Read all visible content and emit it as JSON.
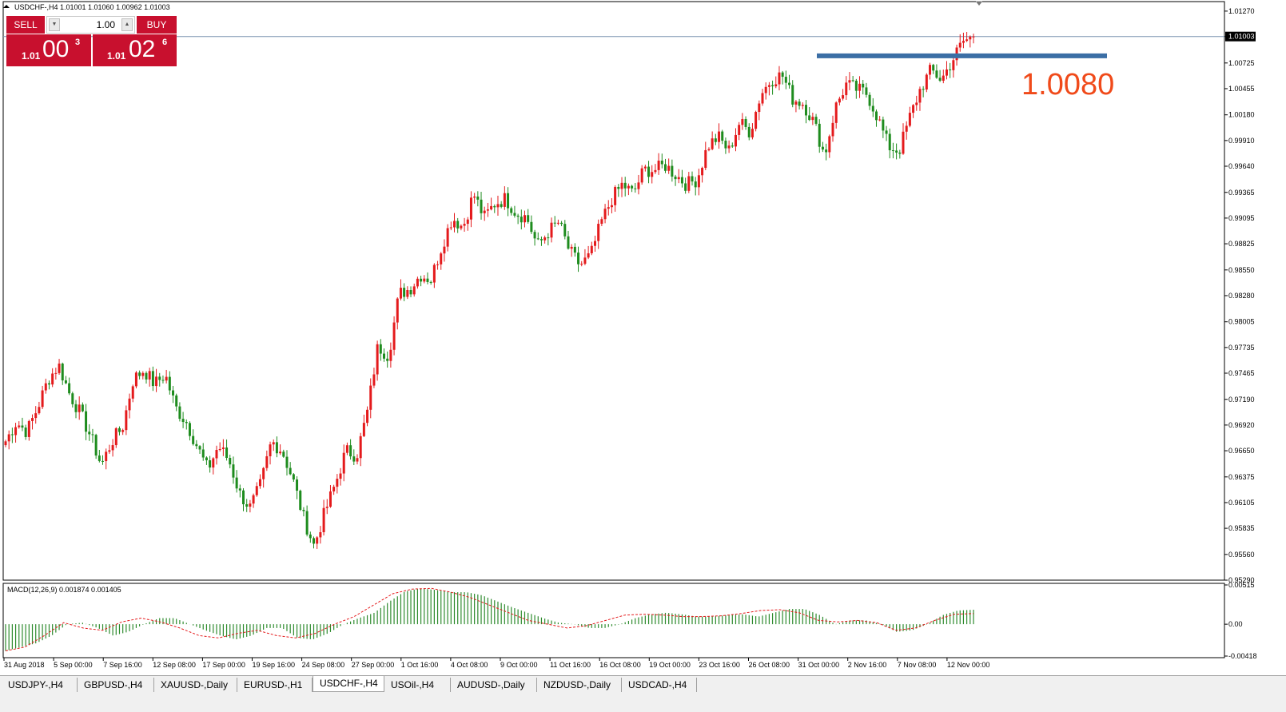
{
  "symbol_header": "USDCHF-,H4  1.01001 1.01060 1.00962 1.01003",
  "trade_panel": {
    "sell_label": "SELL",
    "buy_label": "BUY",
    "lot": "1.00",
    "sell_price": {
      "prefix": "1.01",
      "big": "00",
      "sup": "3"
    },
    "buy_price": {
      "prefix": "1.01",
      "big": "02",
      "sup": "6"
    }
  },
  "annotation_text": "1.0080",
  "current_price_label": "1.01003",
  "macd_label": "MACD(12,26,9) 0.001874 0.001405",
  "chart_data": [
    {
      "type": "candlestick",
      "title": "USDCHF-,H4",
      "y_ticks": [
        "1.01270",
        "1.01003",
        "1.00725",
        "1.00455",
        "1.00180",
        "0.99910",
        "0.99640",
        "0.99365",
        "0.99095",
        "0.98825",
        "0.98550",
        "0.98280",
        "0.98005",
        "0.97735",
        "0.97465",
        "0.97190",
        "0.96920",
        "0.96650",
        "0.96375",
        "0.96105",
        "0.95835",
        "0.95560",
        "0.95290"
      ],
      "x_ticks": [
        "31 Aug 2018",
        "5 Sep 00:00",
        "7 Sep 16:00",
        "12 Sep 08:00",
        "17 Sep 00:00",
        "19 Sep 16:00",
        "24 Sep 08:00",
        "27 Sep 00:00",
        "1 Oct 16:00",
        "4 Oct 08:00",
        "9 Oct 00:00",
        "11 Oct 16:00",
        "16 Oct 08:00",
        "19 Oct 00:00",
        "23 Oct 16:00",
        "26 Oct 08:00",
        "31 Oct 00:00",
        "2 Nov 16:00",
        "7 Nov 08:00",
        "12 Nov 00:00"
      ],
      "ylim": [
        0.9529,
        1.0137
      ],
      "current_price": 1.01003,
      "horizontal_level": 1.008,
      "close_path": [
        0.9675,
        0.9695,
        0.9685,
        0.971,
        0.974,
        0.9755,
        0.9725,
        0.9705,
        0.968,
        0.965,
        0.9675,
        0.969,
        0.974,
        0.975,
        0.9735,
        0.9745,
        0.971,
        0.9695,
        0.967,
        0.9645,
        0.967,
        0.9655,
        0.962,
        0.9605,
        0.963,
        0.9675,
        0.9665,
        0.9635,
        0.9595,
        0.9565,
        0.96,
        0.963,
        0.9665,
        0.966,
        0.9705,
        0.9775,
        0.9765,
        0.983,
        0.9835,
        0.985,
        0.9845,
        0.988,
        0.991,
        0.99,
        0.9935,
        0.991,
        0.9925,
        0.993,
        0.9915,
        0.991,
        0.988,
        0.9895,
        0.9905,
        0.9875,
        0.986,
        0.987,
        0.9905,
        0.993,
        0.9945,
        0.9935,
        0.996,
        0.996,
        0.9965,
        0.9955,
        0.9945,
        0.995,
        0.9985,
        0.9995,
        0.998,
        1.001,
        1.0,
        1.004,
        1.0055,
        1.006,
        1.0035,
        1.003,
        1.001,
        0.9975,
        1.0025,
        1.005,
        1.0045,
        1.004,
        1.0015,
        0.9985,
        0.998,
        1.0015,
        1.0045,
        1.0065,
        1.0055,
        1.0075,
        1.0095,
        1.01
      ]
    },
    {
      "type": "histogram",
      "title": "MACD(12,26,9)",
      "y_ticks": [
        "0.00515",
        "0.00",
        "-0.00418"
      ],
      "ylim": [
        -0.00418,
        0.00515
      ],
      "histogram_path": [
        -0.0035,
        -0.003,
        -0.0025,
        -0.0015,
        0.0,
        0.0002,
        -0.0005,
        -0.0015,
        -0.001,
        0.0,
        0.0008,
        0.0008,
        0.0,
        -0.0008,
        -0.0015,
        -0.002,
        -0.0015,
        -0.0005,
        -0.0005,
        -0.0018,
        -0.002,
        -0.0012,
        0.0,
        0.0008,
        0.0015,
        0.003,
        0.0043,
        0.0047,
        0.0045,
        0.0042,
        0.0042,
        0.0038,
        0.003,
        0.0022,
        0.0015,
        0.0008,
        0.0002,
        0.0,
        -0.0005,
        -0.0005,
        0.0,
        0.0008,
        0.0013,
        0.0015,
        0.0013,
        0.001,
        0.001,
        0.0012,
        0.0013,
        0.001,
        0.0015,
        0.002,
        0.002,
        0.0012,
        0.0,
        0.0005,
        0.0005,
        0.0,
        -0.001,
        -0.0008,
        0.0,
        0.0012,
        0.0018,
        0.0019
      ],
      "signal_path": [
        -0.0035,
        -0.003,
        -0.0015,
        0.0002,
        -0.0005,
        -0.0008,
        0.0003,
        0.0008,
        0.0003,
        -0.0005,
        -0.0015,
        -0.0018,
        -0.0012,
        -0.0008,
        -0.0015,
        -0.0018,
        -0.0012,
        0.0,
        0.001,
        0.0025,
        0.004,
        0.0046,
        0.0047,
        0.0042,
        0.0035,
        0.0025,
        0.0015,
        0.0005,
        0.0,
        -0.0005,
        -0.0002,
        0.0005,
        0.0012,
        0.0013,
        0.0012,
        0.001,
        0.001,
        0.0011,
        0.0014,
        0.0018,
        0.0019,
        0.0015,
        0.0005,
        0.0003,
        0.0005,
        0.0002,
        -0.0008,
        -0.0005,
        0.0005,
        0.0013,
        0.0014
      ]
    }
  ],
  "tabs": [
    "USDJPY-,H4",
    "GBPUSD-,H4",
    "XAUUSD-,Daily",
    "EURUSD-,H1",
    "USDCHF-,H4",
    "USOil-,H4",
    "AUDUSD-,Daily",
    "NZDUSD-,Daily",
    "USDCAD-,H4"
  ],
  "active_tab": "USDCHF-,H4",
  "colors": {
    "bull": "#e41a1c",
    "bear": "#1e8c1e",
    "level_line": "#3b6ea5",
    "annotation": "#f04a1a",
    "macd_hist": "#2e8b2e",
    "macd_signal": "#e41a1c",
    "panel_red": "#c8102e"
  }
}
